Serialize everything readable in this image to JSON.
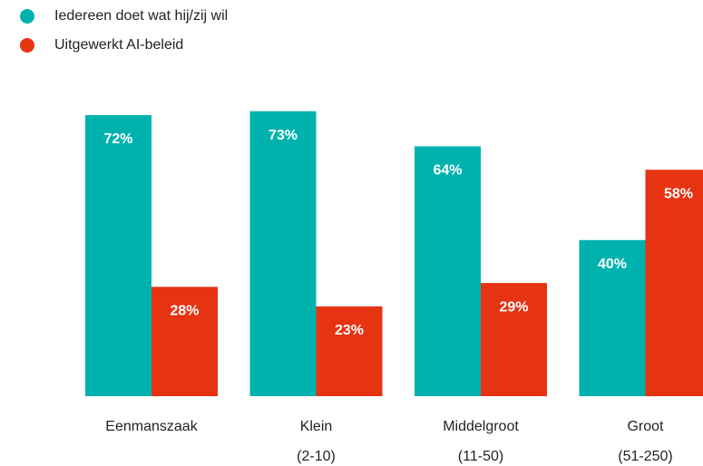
{
  "chart_data": {
    "type": "bar",
    "categories": [
      [
        "Eenmanszaak"
      ],
      [
        "Klein",
        "(2-10)"
      ],
      [
        "Middelgroot",
        "(11-50)"
      ],
      [
        "Groot",
        "(51-250)"
      ]
    ],
    "series": [
      {
        "name": "Iedereen doet wat hij/zij wil",
        "color": "#00b2ad",
        "values": [
          72,
          73,
          64,
          40
        ],
        "value_labels": [
          "72%",
          "73%",
          "64%",
          "40%"
        ]
      },
      {
        "name": "Uitgewerkt AI-beleid",
        "color": "#e63312",
        "values": [
          28,
          23,
          29,
          58
        ],
        "value_labels": [
          "28%",
          "23%",
          "29%",
          "58%"
        ]
      }
    ]
  }
}
